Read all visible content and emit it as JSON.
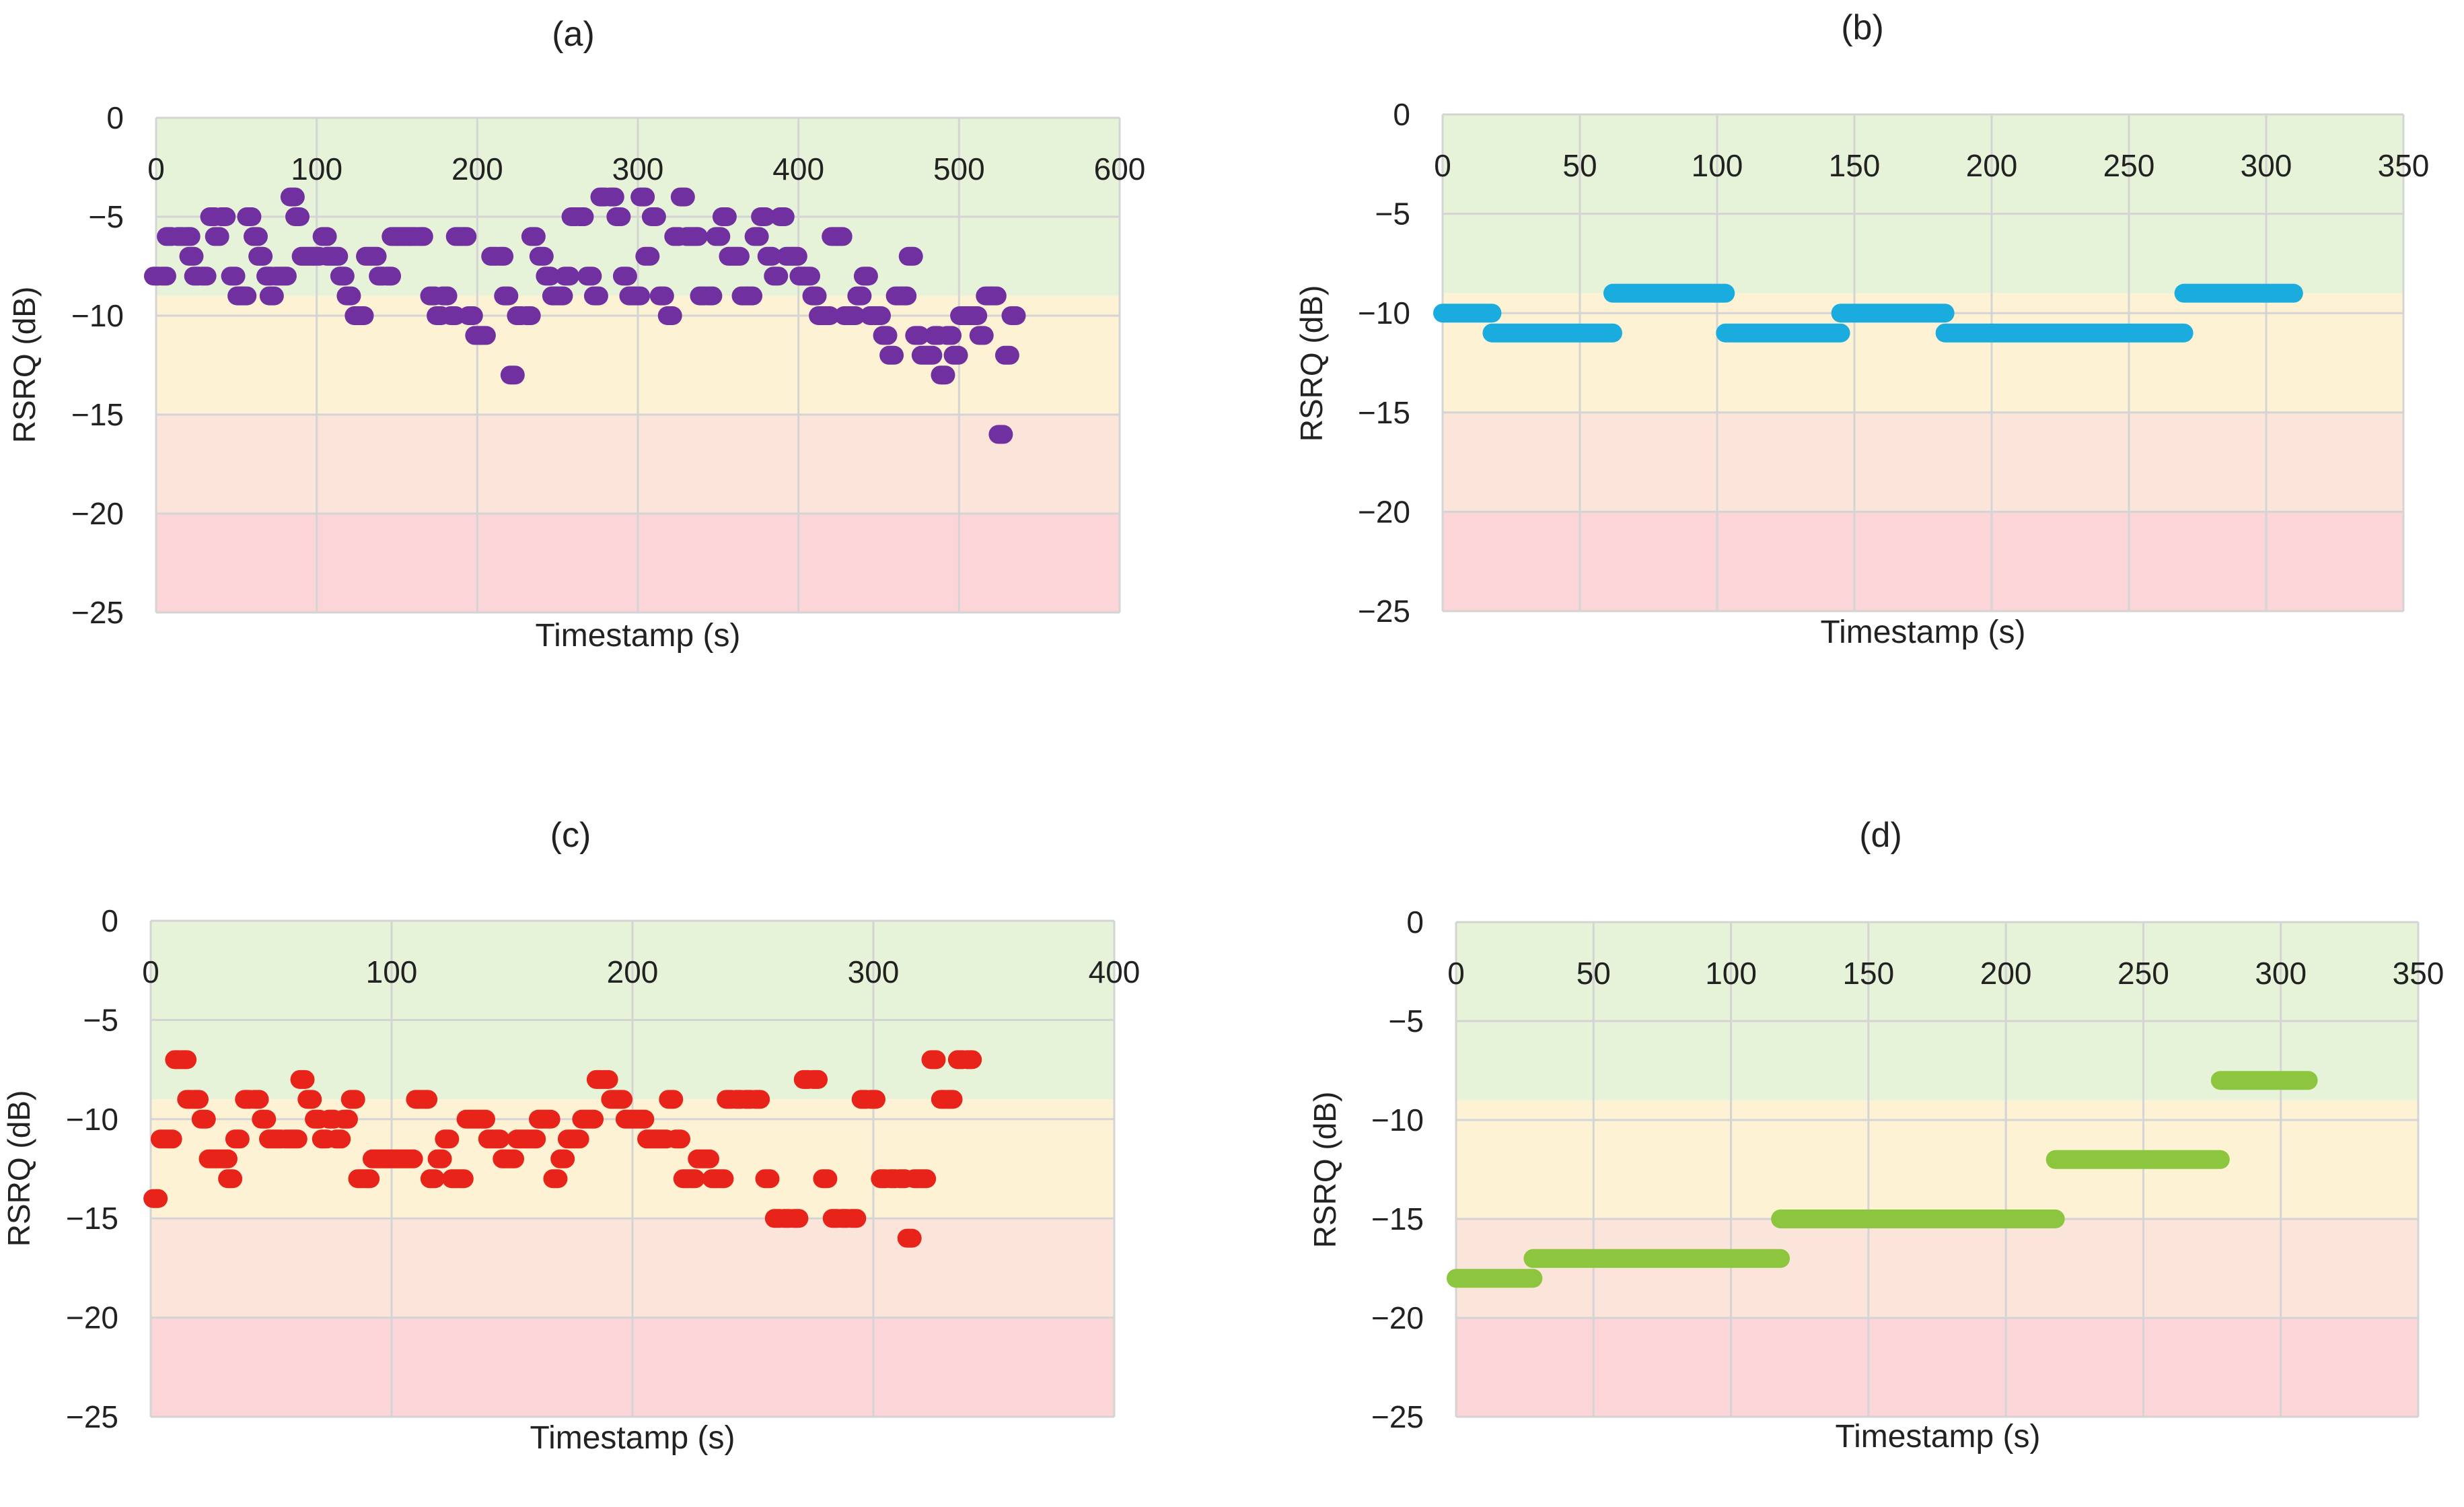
{
  "band_colors": {
    "good": "#e6f3d8",
    "fair": "#fdf2d3",
    "poor": "#fbe4da",
    "bad": "#fbd5d8"
  },
  "band_edges": [
    0,
    -9,
    -15,
    -20,
    -25
  ],
  "grid_color": "#d4d4d4",
  "chart_data": [
    {
      "type": "scatter",
      "title": "(a)",
      "xlabel": "Timestamp (s)",
      "ylabel": "RSRQ (dB)",
      "xlim": [
        0,
        600
      ],
      "ylim": [
        -25,
        0
      ],
      "xticks": [
        0,
        100,
        200,
        300,
        400,
        500,
        600
      ],
      "yticks": [
        0,
        -5,
        -10,
        -15,
        -20,
        -25
      ],
      "color": "#7030a0",
      "points": [
        [
          0,
          -8
        ],
        [
          5,
          -8
        ],
        [
          8,
          -6
        ],
        [
          15,
          -6
        ],
        [
          20,
          -6
        ],
        [
          22,
          -7
        ],
        [
          25,
          -8
        ],
        [
          30,
          -8
        ],
        [
          35,
          -5
        ],
        [
          38,
          -6
        ],
        [
          42,
          -5
        ],
        [
          48,
          -8
        ],
        [
          52,
          -9
        ],
        [
          55,
          -9
        ],
        [
          58,
          -5
        ],
        [
          62,
          -6
        ],
        [
          65,
          -7
        ],
        [
          70,
          -8
        ],
        [
          72,
          -9
        ],
        [
          76,
          -8
        ],
        [
          80,
          -8
        ],
        [
          85,
          -4
        ],
        [
          88,
          -5
        ],
        [
          92,
          -7
        ],
        [
          96,
          -7
        ],
        [
          100,
          -7
        ],
        [
          105,
          -6
        ],
        [
          108,
          -7
        ],
        [
          112,
          -7
        ],
        [
          116,
          -8
        ],
        [
          120,
          -9
        ],
        [
          125,
          -10
        ],
        [
          128,
          -10
        ],
        [
          132,
          -7
        ],
        [
          136,
          -7
        ],
        [
          140,
          -8
        ],
        [
          145,
          -8
        ],
        [
          148,
          -6
        ],
        [
          152,
          -6
        ],
        [
          156,
          -6
        ],
        [
          160,
          -6
        ],
        [
          165,
          -6
        ],
        [
          172,
          -9
        ],
        [
          176,
          -10
        ],
        [
          180,
          -9
        ],
        [
          185,
          -10
        ],
        [
          188,
          -6
        ],
        [
          192,
          -6
        ],
        [
          196,
          -10
        ],
        [
          200,
          -11
        ],
        [
          204,
          -11
        ],
        [
          210,
          -7
        ],
        [
          215,
          -7
        ],
        [
          218,
          -9
        ],
        [
          222,
          -13
        ],
        [
          226,
          -10
        ],
        [
          232,
          -10
        ],
        [
          235,
          -6
        ],
        [
          240,
          -7
        ],
        [
          244,
          -8
        ],
        [
          248,
          -9
        ],
        [
          252,
          -9
        ],
        [
          256,
          -8
        ],
        [
          260,
          -5
        ],
        [
          265,
          -5
        ],
        [
          270,
          -8
        ],
        [
          274,
          -9
        ],
        [
          278,
          -4
        ],
        [
          284,
          -4
        ],
        [
          288,
          -5
        ],
        [
          292,
          -8
        ],
        [
          296,
          -9
        ],
        [
          300,
          -9
        ],
        [
          303,
          -4
        ],
        [
          306,
          -7
        ],
        [
          310,
          -5
        ],
        [
          315,
          -9
        ],
        [
          320,
          -10
        ],
        [
          324,
          -6
        ],
        [
          328,
          -4
        ],
        [
          332,
          -6
        ],
        [
          336,
          -6
        ],
        [
          340,
          -9
        ],
        [
          345,
          -9
        ],
        [
          350,
          -6
        ],
        [
          354,
          -5
        ],
        [
          358,
          -7
        ],
        [
          362,
          -7
        ],
        [
          366,
          -9
        ],
        [
          370,
          -9
        ],
        [
          374,
          -6
        ],
        [
          378,
          -5
        ],
        [
          382,
          -7
        ],
        [
          386,
          -8
        ],
        [
          390,
          -5
        ],
        [
          394,
          -7
        ],
        [
          398,
          -7
        ],
        [
          402,
          -8
        ],
        [
          406,
          -8
        ],
        [
          410,
          -9
        ],
        [
          414,
          -10
        ],
        [
          418,
          -10
        ],
        [
          422,
          -6
        ],
        [
          426,
          -6
        ],
        [
          430,
          -10
        ],
        [
          434,
          -10
        ],
        [
          438,
          -9
        ],
        [
          442,
          -8
        ],
        [
          446,
          -10
        ],
        [
          450,
          -10
        ],
        [
          454,
          -11
        ],
        [
          458,
          -12
        ],
        [
          462,
          -9
        ],
        [
          466,
          -9
        ],
        [
          470,
          -7
        ],
        [
          474,
          -11
        ],
        [
          478,
          -12
        ],
        [
          482,
          -12
        ],
        [
          486,
          -11
        ],
        [
          490,
          -13
        ],
        [
          494,
          -11
        ],
        [
          498,
          -12
        ],
        [
          502,
          -10
        ],
        [
          506,
          -10
        ],
        [
          510,
          -10
        ],
        [
          514,
          -11
        ],
        [
          518,
          -9
        ],
        [
          522,
          -9
        ],
        [
          526,
          -16
        ],
        [
          530,
          -12
        ],
        [
          534,
          -10
        ]
      ]
    },
    {
      "type": "scatter",
      "title": "(b)",
      "xlabel": "Timestamp (s)",
      "ylabel": "RSRQ (dB)",
      "xlim": [
        0,
        350
      ],
      "ylim": [
        -25,
        0
      ],
      "xticks": [
        0,
        50,
        100,
        150,
        200,
        250,
        300,
        350
      ],
      "yticks": [
        0,
        -5,
        -10,
        -15,
        -20,
        -25
      ],
      "color": "#1aabdf",
      "segments": [
        {
          "x_start": 0,
          "x_end": 18,
          "y": -10
        },
        {
          "x_start": 18,
          "x_end": 62,
          "y": -11
        },
        {
          "x_start": 62,
          "x_end": 103,
          "y": -9
        },
        {
          "x_start": 103,
          "x_end": 145,
          "y": -11
        },
        {
          "x_start": 145,
          "x_end": 183,
          "y": -10
        },
        {
          "x_start": 183,
          "x_end": 270,
          "y": -11
        },
        {
          "x_start": 270,
          "x_end": 310,
          "y": -9
        }
      ]
    },
    {
      "type": "scatter",
      "title": "(c)",
      "xlabel": "Timestamp (s)",
      "ylabel": "RSRQ (dB)",
      "xlim": [
        0,
        400
      ],
      "ylim": [
        -25,
        0
      ],
      "xticks": [
        0,
        100,
        200,
        300,
        400
      ],
      "yticks": [
        0,
        -5,
        -10,
        -15,
        -20,
        -25
      ],
      "color": "#e8231a",
      "points": [
        [
          2,
          -14
        ],
        [
          5,
          -11
        ],
        [
          8,
          -11
        ],
        [
          11,
          -7
        ],
        [
          14,
          -7
        ],
        [
          16,
          -9
        ],
        [
          19,
          -9
        ],
        [
          22,
          -10
        ],
        [
          25,
          -12
        ],
        [
          28,
          -12
        ],
        [
          31,
          -12
        ],
        [
          33,
          -13
        ],
        [
          36,
          -11
        ],
        [
          40,
          -9
        ],
        [
          44,
          -9
        ],
        [
          47,
          -10
        ],
        [
          50,
          -11
        ],
        [
          53,
          -11
        ],
        [
          57,
          -11
        ],
        [
          60,
          -11
        ],
        [
          63,
          -8
        ],
        [
          66,
          -9
        ],
        [
          69,
          -10
        ],
        [
          72,
          -11
        ],
        [
          75,
          -10
        ],
        [
          78,
          -11
        ],
        [
          81,
          -10
        ],
        [
          84,
          -9
        ],
        [
          87,
          -13
        ],
        [
          90,
          -13
        ],
        [
          93,
          -12
        ],
        [
          96,
          -12
        ],
        [
          99,
          -12
        ],
        [
          102,
          -12
        ],
        [
          105,
          -12
        ],
        [
          108,
          -12
        ],
        [
          111,
          -9
        ],
        [
          114,
          -9
        ],
        [
          117,
          -13
        ],
        [
          120,
          -12
        ],
        [
          123,
          -11
        ],
        [
          126,
          -13
        ],
        [
          129,
          -13
        ],
        [
          132,
          -10
        ],
        [
          135,
          -10
        ],
        [
          138,
          -10
        ],
        [
          141,
          -11
        ],
        [
          144,
          -11
        ],
        [
          147,
          -12
        ],
        [
          150,
          -12
        ],
        [
          153,
          -11
        ],
        [
          156,
          -11
        ],
        [
          159,
          -11
        ],
        [
          162,
          -10
        ],
        [
          165,
          -10
        ],
        [
          168,
          -13
        ],
        [
          171,
          -12
        ],
        [
          174,
          -11
        ],
        [
          177,
          -11
        ],
        [
          180,
          -10
        ],
        [
          183,
          -10
        ],
        [
          186,
          -8
        ],
        [
          189,
          -8
        ],
        [
          192,
          -9
        ],
        [
          195,
          -9
        ],
        [
          198,
          -10
        ],
        [
          201,
          -10
        ],
        [
          204,
          -10
        ],
        [
          207,
          -11
        ],
        [
          210,
          -11
        ],
        [
          213,
          -11
        ],
        [
          216,
          -9
        ],
        [
          219,
          -11
        ],
        [
          222,
          -13
        ],
        [
          225,
          -13
        ],
        [
          228,
          -12
        ],
        [
          231,
          -12
        ],
        [
          234,
          -13
        ],
        [
          237,
          -13
        ],
        [
          240,
          -9
        ],
        [
          244,
          -9
        ],
        [
          248,
          -9
        ],
        [
          252,
          -9
        ],
        [
          256,
          -13
        ],
        [
          260,
          -15
        ],
        [
          264,
          -15
        ],
        [
          268,
          -15
        ],
        [
          272,
          -8
        ],
        [
          276,
          -8
        ],
        [
          280,
          -13
        ],
        [
          284,
          -15
        ],
        [
          288,
          -15
        ],
        [
          292,
          -15
        ],
        [
          296,
          -9
        ],
        [
          300,
          -9
        ],
        [
          304,
          -13
        ],
        [
          308,
          -13
        ],
        [
          312,
          -13
        ],
        [
          315,
          -16
        ],
        [
          318,
          -13
        ],
        [
          321,
          -13
        ],
        [
          325,
          -7
        ],
        [
          329,
          -9
        ],
        [
          332,
          -9
        ],
        [
          336,
          -7
        ],
        [
          340,
          -7
        ]
      ]
    },
    {
      "type": "scatter",
      "title": "(d)",
      "xlabel": "Timestamp (s)",
      "ylabel": "RSRQ (dB)",
      "xlim": [
        0,
        350
      ],
      "ylim": [
        -25,
        0
      ],
      "xticks": [
        0,
        50,
        100,
        150,
        200,
        250,
        300,
        350
      ],
      "yticks": [
        0,
        -5,
        -10,
        -15,
        -20,
        -25
      ],
      "color": "#8cc63f",
      "segments": [
        {
          "x_start": 0,
          "x_end": 28,
          "y": -18
        },
        {
          "x_start": 28,
          "x_end": 118,
          "y": -17
        },
        {
          "x_start": 118,
          "x_end": 218,
          "y": -15
        },
        {
          "x_start": 218,
          "x_end": 278,
          "y": -12
        },
        {
          "x_start": 278,
          "x_end": 310,
          "y": -8
        }
      ]
    }
  ]
}
